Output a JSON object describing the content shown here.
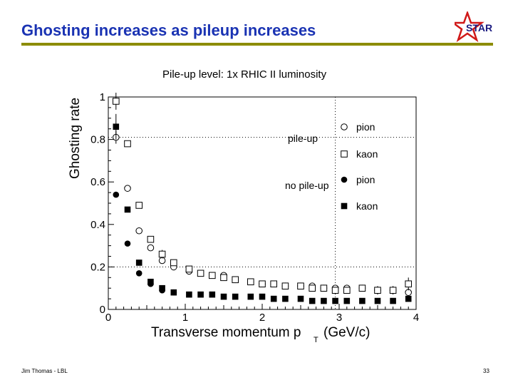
{
  "slide": {
    "title": "Ghosting increases as pileup increases",
    "footer_left": "Jim Thomas - LBL",
    "page_number": "33",
    "logo_text": "STAR"
  },
  "colors": {
    "title": "#1a33b3",
    "rule": "#8c8c00",
    "logo_star": "#d01818",
    "logo_text": "#1a1a80"
  },
  "chart_data": {
    "type": "scatter",
    "title": "Pile-up level:   1x RHIC II luminosity",
    "xlabel": "Transverse momentum p",
    "xlabel_subscript": "T",
    "xlabel_unit": "(GeV/c)",
    "ylabel": "Ghosting rate",
    "xlim": [
      0,
      4
    ],
    "ylim": [
      0,
      1
    ],
    "xticks": [
      0,
      1,
      2,
      3,
      4
    ],
    "xtick_labels": [
      "0",
      "1",
      "2",
      "3",
      "4"
    ],
    "yticks": [
      0,
      0.2,
      0.4,
      0.6,
      0.8,
      1
    ],
    "ytick_labels": [
      "0",
      "0.2",
      "0.4",
      "0.6",
      "0.8",
      "1"
    ],
    "reference_lines": {
      "y": 0.81,
      "x": 2.95
    },
    "legend": {
      "position": "top-right",
      "group_labels": [
        "pile-up",
        "no pile-up"
      ],
      "entries": [
        "pion",
        "kaon",
        "pion",
        "kaon"
      ]
    },
    "series": [
      {
        "name": "pion",
        "group": "pile-up",
        "marker": "open-circle",
        "x": [
          0.1,
          0.25,
          0.4,
          0.55,
          0.7,
          0.85,
          1.05,
          1.5,
          1.65,
          1.85,
          2.0,
          2.15,
          2.3,
          2.5,
          2.65,
          2.8,
          2.95,
          3.1,
          3.3,
          3.5,
          3.7,
          3.9
        ],
        "y": [
          0.81,
          0.57,
          0.37,
          0.29,
          0.23,
          0.2,
          0.18,
          0.16,
          0.14,
          0.13,
          0.12,
          0.12,
          0.11,
          0.11,
          0.11,
          0.1,
          0.1,
          0.1,
          0.1,
          0.09,
          0.09,
          0.08
        ],
        "yerr": [
          0.03,
          0,
          0,
          0,
          0,
          0,
          0,
          0,
          0,
          0,
          0,
          0,
          0,
          0,
          0,
          0,
          0,
          0,
          0,
          0,
          0,
          0.02
        ]
      },
      {
        "name": "kaon",
        "group": "pile-up",
        "marker": "open-square",
        "x": [
          0.1,
          0.25,
          0.4,
          0.55,
          0.7,
          0.85,
          1.05,
          1.2,
          1.35,
          1.5,
          1.65,
          1.85,
          2.0,
          2.15,
          2.3,
          2.5,
          2.65,
          2.8,
          2.95,
          3.1,
          3.3,
          3.5,
          3.7,
          3.9
        ],
        "y": [
          0.98,
          0.78,
          0.49,
          0.33,
          0.26,
          0.22,
          0.19,
          0.17,
          0.16,
          0.15,
          0.14,
          0.13,
          0.12,
          0.12,
          0.11,
          0.11,
          0.1,
          0.1,
          0.09,
          0.09,
          0.1,
          0.09,
          0.09,
          0.12
        ],
        "yerr": [
          0.04,
          0,
          0,
          0,
          0.02,
          0,
          0,
          0,
          0,
          0,
          0,
          0,
          0,
          0,
          0,
          0,
          0,
          0,
          0,
          0,
          0,
          0.02,
          0.02,
          0.03
        ]
      },
      {
        "name": "pion",
        "group": "no pile-up",
        "marker": "filled-circle",
        "x": [
          0.1,
          0.25,
          0.4,
          0.55,
          0.7,
          0.85
        ],
        "y": [
          0.54,
          0.31,
          0.17,
          0.12,
          0.09,
          0.08
        ],
        "yerr": [
          0,
          0,
          0,
          0,
          0,
          0
        ]
      },
      {
        "name": "kaon",
        "group": "no pile-up",
        "marker": "filled-square",
        "x": [
          0.1,
          0.25,
          0.4,
          0.55,
          0.7,
          0.85,
          1.05,
          1.2,
          1.35,
          1.5,
          1.65,
          1.85,
          2.0,
          2.15,
          2.3,
          2.5,
          2.65,
          2.8,
          2.95,
          3.1,
          3.3,
          3.5,
          3.7,
          3.9
        ],
        "y": [
          0.86,
          0.47,
          0.22,
          0.13,
          0.1,
          0.08,
          0.07,
          0.07,
          0.07,
          0.06,
          0.06,
          0.06,
          0.06,
          0.05,
          0.05,
          0.05,
          0.04,
          0.04,
          0.04,
          0.04,
          0.04,
          0.04,
          0.04,
          0.05
        ],
        "yerr": [
          0.06,
          0,
          0,
          0,
          0,
          0,
          0,
          0,
          0,
          0,
          0,
          0,
          0,
          0,
          0,
          0,
          0,
          0,
          0,
          0,
          0,
          0,
          0,
          0
        ]
      }
    ]
  }
}
